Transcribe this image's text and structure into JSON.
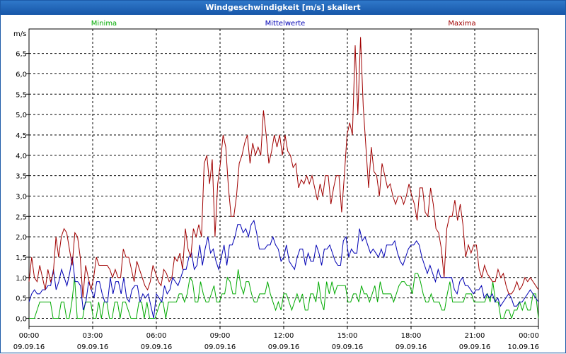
{
  "window": {
    "title": "Windgeschwindigkeit [m/s] skaliert"
  },
  "chart_data": {
    "type": "line",
    "title": "Windgeschwindigkeit [m/s] skaliert",
    "ylabel": "m/s",
    "xlabel": "",
    "ylim": [
      -0.2,
      7.1
    ],
    "xlim": [
      0,
      24
    ],
    "grid": true,
    "legend_position": "top",
    "y_ticks": [
      "0,0",
      "0,5",
      "1,0",
      "1,5",
      "2,0",
      "2,5",
      "3,0",
      "3,5",
      "4,0",
      "4,5",
      "5,0",
      "5,5",
      "6,0",
      "6,5"
    ],
    "x_ticks": [
      {
        "time": "00:00",
        "date": "09.09.16"
      },
      {
        "time": "03:00",
        "date": "09.09.16"
      },
      {
        "time": "06:00",
        "date": "09.09.16"
      },
      {
        "time": "09:00",
        "date": "09.09.16"
      },
      {
        "time": "12:00",
        "date": "09.09.16"
      },
      {
        "time": "15:00",
        "date": "09.09.16"
      },
      {
        "time": "18:00",
        "date": "09.09.16"
      },
      {
        "time": "21:00",
        "date": "09.09.16"
      },
      {
        "time": "00:00",
        "date": "10.09.16"
      }
    ],
    "series": [
      {
        "name": "Minima",
        "color": "#00aa00",
        "values": [
          0.0,
          0.0,
          0.0,
          0.2,
          0.4,
          0.4,
          0.4,
          0.4,
          0.4,
          0.0,
          0.0,
          0.0,
          0.4,
          0.4,
          0.0,
          0.0,
          0.4,
          1.0,
          0.0,
          0.0,
          0.0,
          0.4,
          0.4,
          0.4,
          0.0,
          0.0,
          0.4,
          0.0,
          0.4,
          0.4,
          0.0,
          0.0,
          0.4,
          0.4,
          0.0,
          0.4,
          0.4,
          0.2,
          0.0,
          0.0,
          0.0,
          0.4,
          0.4,
          0.0,
          0.4,
          0.0,
          0.0,
          0.0,
          0.2,
          0.4,
          0.4,
          0.0,
          0.4,
          0.4,
          0.4,
          0.4,
          0.6,
          0.6,
          0.4,
          0.6,
          1.0,
          0.9,
          0.4,
          0.4,
          0.9,
          0.6,
          0.4,
          0.4,
          0.6,
          0.8,
          0.4,
          0.4,
          0.6,
          0.6,
          1.0,
          0.9,
          0.6,
          0.6,
          1.2,
          0.8,
          0.6,
          0.9,
          0.9,
          0.6,
          0.4,
          0.4,
          0.6,
          0.6,
          0.6,
          0.9,
          0.6,
          0.4,
          0.2,
          0.4,
          0.2,
          0.6,
          0.6,
          0.4,
          0.2,
          0.4,
          0.6,
          0.4,
          0.6,
          0.2,
          0.2,
          0.6,
          0.6,
          0.4,
          0.9,
          0.4,
          0.2,
          0.9,
          0.6,
          0.9,
          0.6,
          0.8,
          0.8,
          0.8,
          0.8,
          0.4,
          0.4,
          0.6,
          0.6,
          0.4,
          0.8,
          0.6,
          0.6,
          0.4,
          0.6,
          0.8,
          0.4,
          0.9,
          0.6,
          0.6,
          0.6,
          0.6,
          0.4,
          0.6,
          0.8,
          0.9,
          0.9,
          0.8,
          0.8,
          0.6,
          1.1,
          1.1,
          0.9,
          0.6,
          0.4,
          0.4,
          0.6,
          0.4,
          0.4,
          0.4,
          0.2,
          0.2,
          0.6,
          0.9,
          0.4,
          0.4,
          0.4,
          0.4,
          0.4,
          0.6,
          0.6,
          0.6,
          0.4,
          0.4,
          0.4,
          0.4,
          0.4,
          0.6,
          0.4,
          0.9,
          0.4,
          0.4,
          0.0,
          0.0,
          0.2,
          0.2,
          0.0,
          0.2,
          0.2,
          0.4,
          0.2,
          0.4,
          0.2,
          0.2,
          0.6,
          0.6,
          0.0
        ]
      },
      {
        "name": "Mittelwerte",
        "color": "#0000b4",
        "values": [
          0.4,
          0.6,
          0.7,
          0.6,
          0.6,
          0.7,
          0.7,
          0.8,
          0.8,
          1.2,
          0.7,
          0.9,
          1.2,
          1.0,
          0.8,
          1.1,
          1.5,
          0.9,
          0.9,
          0.8,
          0.2,
          0.4,
          0.9,
          0.7,
          0.5,
          0.9,
          0.9,
          0.6,
          0.4,
          0.4,
          1.0,
          0.6,
          0.9,
          0.9,
          0.6,
          1.0,
          0.5,
          0.4,
          0.7,
          0.8,
          0.8,
          0.4,
          0.6,
          0.5,
          0.6,
          0.3,
          0.0,
          0.6,
          0.5,
          0.4,
          0.8,
          0.6,
          0.7,
          1.0,
          0.9,
          0.8,
          1.0,
          1.2,
          1.2,
          1.5,
          1.6,
          1.2,
          1.3,
          1.8,
          1.3,
          1.7,
          2.0,
          1.6,
          1.7,
          1.4,
          1.2,
          1.5,
          1.8,
          1.3,
          1.8,
          1.8,
          2.0,
          2.3,
          2.3,
          2.1,
          2.2,
          2.0,
          2.3,
          2.4,
          2.1,
          1.7,
          1.7,
          1.7,
          1.8,
          1.8,
          2.0,
          1.8,
          1.7,
          1.4,
          1.5,
          1.8,
          1.4,
          1.3,
          1.2,
          1.5,
          1.7,
          1.7,
          1.3,
          1.6,
          1.4,
          1.4,
          1.8,
          1.6,
          1.3,
          1.7,
          1.7,
          1.8,
          1.6,
          1.4,
          1.3,
          1.3,
          1.9,
          2.0,
          1.5,
          1.7,
          1.6,
          1.6,
          2.2,
          1.9,
          2.0,
          1.8,
          1.6,
          1.7,
          1.6,
          1.5,
          1.7,
          1.5,
          1.8,
          1.8,
          1.8,
          1.9,
          1.6,
          1.4,
          1.3,
          1.5,
          1.7,
          1.8,
          1.8,
          1.9,
          1.8,
          1.5,
          1.3,
          1.1,
          1.3,
          1.1,
          0.9,
          1.2,
          1.0,
          1.0,
          1.0,
          1.0,
          1.0,
          0.7,
          0.6,
          0.9,
          1.0,
          0.8,
          0.8,
          0.7,
          0.6,
          0.7,
          0.7,
          0.8,
          0.5,
          0.6,
          0.5,
          0.6,
          0.4,
          0.5,
          0.3,
          0.4,
          0.5,
          0.6,
          0.5,
          0.3,
          0.3,
          0.4,
          0.4,
          0.5,
          0.6,
          0.7,
          0.6,
          0.5,
          0.4
        ]
      },
      {
        "name": "Maxima",
        "color": "#a00000",
        "values": [
          0.9,
          1.5,
          1.0,
          0.9,
          1.3,
          1.0,
          0.7,
          1.2,
          0.9,
          1.1,
          2.0,
          1.5,
          2.0,
          2.2,
          2.1,
          1.7,
          1.3,
          2.1,
          2.0,
          1.5,
          0.5,
          1.3,
          1.0,
          0.7,
          1.0,
          1.5,
          1.3,
          1.3,
          1.3,
          1.3,
          1.2,
          1.0,
          1.2,
          1.0,
          1.0,
          1.7,
          1.5,
          1.5,
          1.2,
          0.9,
          1.4,
          1.2,
          1.0,
          0.8,
          0.7,
          0.9,
          1.3,
          1.1,
          0.9,
          0.8,
          1.2,
          1.1,
          0.9,
          1.0,
          1.5,
          1.4,
          1.6,
          1.2,
          2.2,
          1.7,
          1.5,
          2.2,
          2.0,
          2.3,
          2.0,
          3.8,
          4.0,
          3.3,
          3.9,
          2.0,
          3.3,
          3.8,
          4.5,
          4.2,
          3.2,
          2.5,
          2.5,
          3.0,
          3.8,
          4.0,
          4.3,
          4.5,
          3.8,
          4.3,
          4.0,
          4.2,
          4.0,
          5.1,
          4.5,
          3.8,
          4.1,
          4.5,
          4.2,
          4.5,
          4.0,
          4.5,
          4.1,
          4.0,
          3.7,
          3.8,
          3.2,
          3.4,
          3.3,
          3.5,
          3.3,
          3.5,
          3.2,
          2.9,
          3.3,
          3.0,
          3.5,
          3.5,
          2.8,
          3.2,
          3.5,
          3.5,
          2.6,
          3.5,
          4.5,
          4.8,
          4.5,
          6.7,
          5.0,
          6.9,
          5.2,
          4.2,
          3.2,
          4.2,
          3.6,
          3.5,
          3.0,
          3.8,
          3.5,
          3.2,
          3.3,
          3.0,
          2.8,
          3.0,
          3.0,
          2.8,
          3.0,
          3.3,
          3.0,
          2.8,
          2.4,
          3.2,
          3.2,
          2.6,
          2.5,
          3.2,
          2.8,
          2.2,
          2.1,
          1.7,
          1.0,
          2.2,
          2.5,
          2.5,
          2.9,
          2.4,
          2.8,
          2.3,
          1.5,
          1.8,
          1.6,
          1.8,
          1.8,
          1.2,
          1.0,
          1.3,
          1.1,
          1.0,
          0.9,
          0.9,
          1.2,
          1.0,
          1.1,
          0.8,
          0.6,
          0.6,
          0.7,
          0.9,
          0.7,
          0.8,
          1.0,
          0.9,
          1.0,
          0.9,
          0.8,
          0.7
        ]
      }
    ]
  }
}
